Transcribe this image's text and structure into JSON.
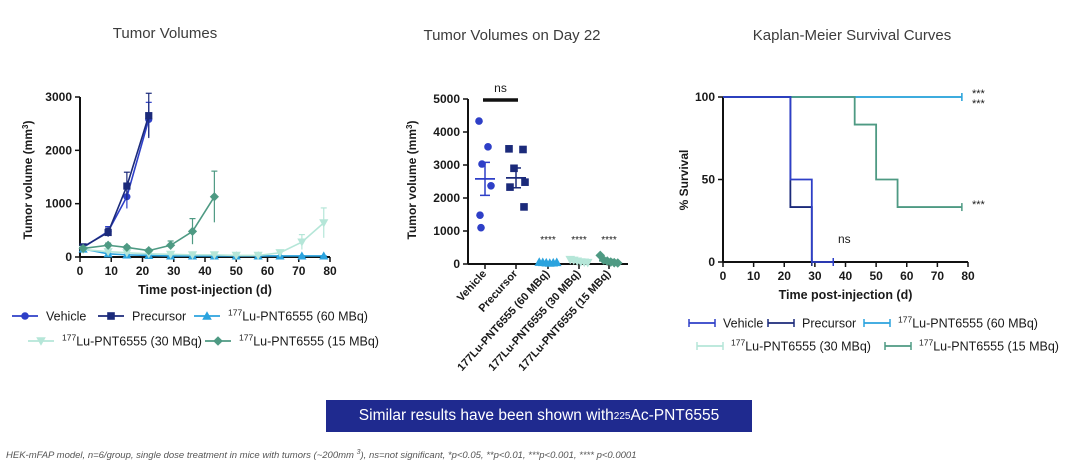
{
  "panels": {
    "tv": {
      "title": "Tumor Volumes",
      "ylabel_base": "Tumor volume (mm",
      "ylabel_exp": "3",
      "ylabel_close": ")",
      "xlabel": "Time post-injection (d)",
      "xticks": [
        "0",
        "10",
        "20",
        "30",
        "40",
        "50",
        "60",
        "70",
        "80"
      ],
      "yticks": [
        "0",
        "1000",
        "2000",
        "3000"
      ]
    },
    "d22": {
      "title": "Tumor Volumes on Day 22",
      "ylabel_base": "Tumor volume (mm",
      "ylabel_exp": "3",
      "ylabel_close": ")",
      "yticks": [
        "0",
        "1000",
        "2000",
        "3000",
        "4000",
        "5000"
      ],
      "ns": "ns",
      "stars": [
        "****",
        "****",
        "****"
      ]
    },
    "km": {
      "title": "Kaplan-Meier Survival Curves",
      "ylabel": "% Survival",
      "xlabel": "Time post-injection (d)",
      "xticks": [
        "0",
        "10",
        "20",
        "30",
        "40",
        "50",
        "60",
        "70",
        "80"
      ],
      "yticks": [
        "0",
        "50",
        "100"
      ],
      "ns": "ns",
      "stars": [
        "***",
        "***",
        "***"
      ]
    }
  },
  "legend": {
    "vehicle": "Vehicle",
    "precursor": "Precursor",
    "iso": "177",
    "lu60": "Lu-PNT6555 (60 MBq)",
    "lu30": "Lu-PNT6555 (30 MBq)",
    "lu15": "Lu-PNT6555 (15 MBq)"
  },
  "colors": {
    "vehicle": "#2e3fc7",
    "precursor": "#1b2a7a",
    "lu60": "#2ba3de",
    "lu30": "#b5e6d8",
    "lu15": "#4e9a83",
    "banner": "#1f2a8f"
  },
  "banner": {
    "text": "Similar results have been shown with ",
    "iso": "225",
    "agent": "Ac-PNT6555"
  },
  "footnote": {
    "text1": "HEK-mFAP model, n=6/group, single dose treatment in mice with tumors (~200mm ",
    "exp": "3",
    "text2": "), ns=not significant, *p<0.05, **p<0.01, ***p<0.001, **** p<0.0001"
  },
  "chart_data": [
    {
      "type": "line",
      "title": "Tumor Volumes",
      "xlabel": "Time post-injection (d)",
      "ylabel": "Tumor volume (mm3)",
      "xlim": [
        0,
        80
      ],
      "ylim": [
        0,
        3000
      ],
      "series": [
        {
          "name": "Vehicle",
          "x": [
            1,
            9,
            15,
            22
          ],
          "y": [
            180,
            480,
            1130,
            2580
          ],
          "err": [
            40,
            90,
            220,
            320
          ]
        },
        {
          "name": "Precursor",
          "x": [
            1,
            9,
            15,
            22
          ],
          "y": [
            190,
            460,
            1330,
            2650
          ],
          "err": [
            40,
            80,
            260,
            420
          ]
        },
        {
          "name": "177Lu-PNT6555 (60 MBq)",
          "x": [
            1,
            9,
            15,
            22,
            29,
            36,
            43,
            50,
            57,
            64,
            71,
            78
          ],
          "y": [
            150,
            60,
            40,
            30,
            20,
            20,
            20,
            20,
            20,
            20,
            20,
            20
          ],
          "err": [
            20,
            10,
            10,
            5,
            5,
            5,
            5,
            5,
            5,
            5,
            5,
            5
          ]
        },
        {
          "name": "177Lu-PNT6555 (30 MBq)",
          "x": [
            1,
            9,
            15,
            22,
            29,
            36,
            43,
            50,
            57,
            64,
            71,
            78
          ],
          "y": [
            140,
            100,
            80,
            60,
            50,
            40,
            40,
            30,
            30,
            80,
            280,
            640
          ],
          "err": [
            20,
            20,
            15,
            10,
            10,
            10,
            10,
            10,
            10,
            40,
            140,
            280
          ]
        },
        {
          "name": "177Lu-PNT6555 (15 MBq)",
          "x": [
            1,
            9,
            15,
            22,
            29,
            36,
            43
          ],
          "y": [
            160,
            220,
            180,
            120,
            220,
            480,
            1130
          ],
          "err": [
            30,
            40,
            30,
            30,
            80,
            240,
            480
          ]
        }
      ]
    },
    {
      "type": "scatter",
      "title": "Tumor Volumes on Day 22",
      "ylabel": "Tumor volume (mm3)",
      "ylim": [
        0,
        5000
      ],
      "categories": [
        "Vehicle",
        "Precursor",
        "177Lu-PNT6555 (60 MBq)",
        "177Lu-PNT6555 (30 MBq)",
        "177Lu-PNT6555 (15 MBq)"
      ],
      "points": [
        [
          4330,
          3550,
          3030,
          2370,
          1480,
          1100
        ],
        [
          3490,
          3470,
          2900,
          2480,
          2330,
          1730
        ],
        [
          60,
          50,
          40,
          30,
          40,
          50
        ],
        [
          130,
          110,
          80,
          60,
          50,
          40
        ],
        [
          260,
          120,
          90,
          60,
          40,
          30
        ]
      ],
      "means": [
        2580,
        2610,
        45,
        80,
        100
      ],
      "sem": [
        500,
        300,
        10,
        15,
        35
      ],
      "annotations": {
        "ns": "Vehicle vs Precursor",
        "****": [
          "60 MBq",
          "30 MBq",
          "15 MBq"
        ]
      }
    },
    {
      "type": "line",
      "title": "Kaplan-Meier Survival Curves",
      "xlabel": "Time post-injection (d)",
      "ylabel": "% Survival",
      "xlim": [
        0,
        80
      ],
      "ylim": [
        0,
        100
      ],
      "series": [
        {
          "name": "Vehicle",
          "x": [
            0,
            22,
            22,
            29,
            29,
            36,
            36
          ],
          "y": [
            100,
            100,
            50,
            50,
            0,
            0,
            0
          ]
        },
        {
          "name": "Precursor",
          "x": [
            0,
            22,
            22,
            29,
            29
          ],
          "y": [
            100,
            100,
            33.3,
            33.3,
            0
          ]
        },
        {
          "name": "177Lu-PNT6555 (60 MBq)",
          "x": [
            0,
            78
          ],
          "y": [
            100,
            100
          ]
        },
        {
          "name": "177Lu-PNT6555 (30 MBq)",
          "x": [
            0,
            78
          ],
          "y": [
            100,
            100
          ]
        },
        {
          "name": "177Lu-PNT6555 (15 MBq)",
          "x": [
            0,
            43,
            43,
            50,
            50,
            57,
            57,
            78
          ],
          "y": [
            100,
            100,
            83.3,
            83.3,
            50,
            50,
            33.3,
            33.3
          ]
        }
      ]
    }
  ]
}
